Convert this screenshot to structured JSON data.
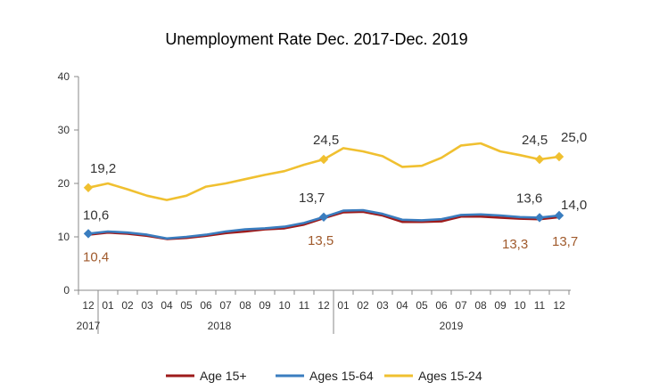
{
  "chart_data": {
    "type": "line",
    "title": "Unemployment Rate Dec. 2017-Dec. 2019",
    "xlabel": "",
    "ylabel": "",
    "ylim": [
      0,
      40
    ],
    "yticks": [
      "0",
      "10",
      "20",
      "30",
      "40"
    ],
    "categories": [
      "12",
      "01",
      "02",
      "03",
      "04",
      "05",
      "06",
      "07",
      "08",
      "09",
      "10",
      "11",
      "12",
      "01",
      "02",
      "03",
      "04",
      "05",
      "06",
      "07",
      "08",
      "09",
      "10",
      "11",
      "12"
    ],
    "years": [
      "2017",
      "2018",
      "2019"
    ],
    "grid": false,
    "legend_position": "bottom",
    "series": [
      {
        "name": "Age 15+",
        "color": "#9e1b1b",
        "values": [
          10.4,
          10.8,
          10.6,
          10.2,
          9.6,
          9.8,
          10.2,
          10.7,
          11.0,
          11.4,
          11.6,
          12.3,
          13.5,
          14.6,
          14.7,
          14.0,
          12.8,
          12.8,
          12.9,
          13.8,
          13.8,
          13.6,
          13.4,
          13.3,
          13.7
        ]
      },
      {
        "name": "Ages 15-64",
        "color": "#3a7dbf",
        "values": [
          10.6,
          11.0,
          10.8,
          10.4,
          9.7,
          10.0,
          10.4,
          11.0,
          11.4,
          11.6,
          11.9,
          12.6,
          13.7,
          14.9,
          15.0,
          14.3,
          13.2,
          13.1,
          13.3,
          14.1,
          14.2,
          14.0,
          13.7,
          13.6,
          14.0
        ]
      },
      {
        "name": "Ages 15-24",
        "color": "#f0c030",
        "values": [
          19.2,
          20.0,
          18.9,
          17.7,
          16.9,
          17.7,
          19.4,
          20.0,
          20.8,
          21.6,
          22.3,
          23.5,
          24.5,
          26.6,
          26.0,
          25.1,
          23.1,
          23.3,
          24.8,
          27.1,
          27.5,
          26.0,
          25.3,
          24.5,
          25.0
        ]
      }
    ],
    "annotations": [
      {
        "text": "19,2",
        "series": 2,
        "index": 0,
        "color": "#333333"
      },
      {
        "text": "24,5",
        "series": 2,
        "index": 12,
        "color": "#333333"
      },
      {
        "text": "24,5",
        "series": 2,
        "index": 23,
        "color": "#333333"
      },
      {
        "text": "25,0",
        "series": 2,
        "index": 24,
        "color": "#333333"
      },
      {
        "text": "10,6",
        "series": 1,
        "index": 0,
        "color": "#333333"
      },
      {
        "text": "13,7",
        "series": 1,
        "index": 12,
        "color": "#333333"
      },
      {
        "text": "13,6",
        "series": 1,
        "index": 23,
        "color": "#333333"
      },
      {
        "text": "14,0",
        "series": 1,
        "index": 24,
        "color": "#333333"
      },
      {
        "text": "10,4",
        "series": 0,
        "index": 0,
        "color": "#a05a2c"
      },
      {
        "text": "13,5",
        "series": 0,
        "index": 12,
        "color": "#a05a2c"
      },
      {
        "text": "13,3",
        "series": 0,
        "index": 23,
        "color": "#a05a2c"
      },
      {
        "text": "13,7",
        "series": 0,
        "index": 24,
        "color": "#a05a2c"
      }
    ]
  }
}
